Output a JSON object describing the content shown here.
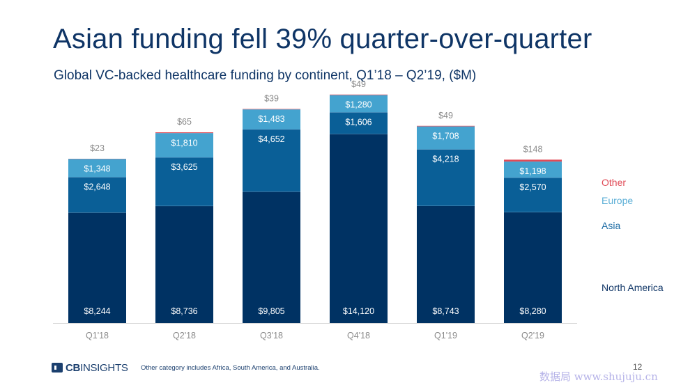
{
  "header": {
    "title": "Asian funding fell 39% quarter-over-quarter",
    "subtitle": "Global VC-backed healthcare funding by continent, Q1’18 – Q2’19, ($M)"
  },
  "chart_data": {
    "type": "bar",
    "stacked": true,
    "categories": [
      "Q1'18",
      "Q2'18",
      "Q3'18",
      "Q4'18",
      "Q1'19",
      "Q2'19"
    ],
    "series": [
      {
        "name": "North America",
        "color": "#003263",
        "values": [
          8244,
          8736,
          9805,
          14120,
          8743,
          8280
        ],
        "labels": [
          "$8,244",
          "$8,736",
          "$9,805",
          "$14,120",
          "$8,743",
          "$8,280"
        ]
      },
      {
        "name": "Asia",
        "color": "#0a5f97",
        "values": [
          2648,
          3625,
          4652,
          1606,
          4218,
          2570
        ],
        "labels": [
          "$2,648",
          "$3,625",
          "$4,652",
          "$1,606",
          "$4,218",
          "$2,570"
        ]
      },
      {
        "name": "Europe",
        "color": "#44a3cf",
        "values": [
          1348,
          1810,
          1483,
          1280,
          1708,
          1198
        ],
        "labels": [
          "$1,348",
          "$1,810",
          "$1,483",
          "$1,280",
          "$1,708",
          "$1,198"
        ]
      },
      {
        "name": "Other",
        "color": "#e04b57",
        "values": [
          23,
          65,
          39,
          49,
          49,
          148
        ],
        "labels": [
          "$23",
          "$65",
          "$39",
          "$49",
          "$49",
          "$148"
        ]
      }
    ],
    "legend_position": "right",
    "legend_colors": [
      "#e04b57",
      "#5aaed6",
      "#1a6aa3",
      "#0f3566"
    ],
    "ylim": [
      0,
      17200
    ],
    "grid": false
  },
  "footer": {
    "logo_bold": "CB",
    "logo_thin": "INSIGHTS",
    "note": "Other category includes Africa, South America, and Australia.",
    "page_number": "12",
    "watermark": "数据局 www.shujuju.cn"
  }
}
